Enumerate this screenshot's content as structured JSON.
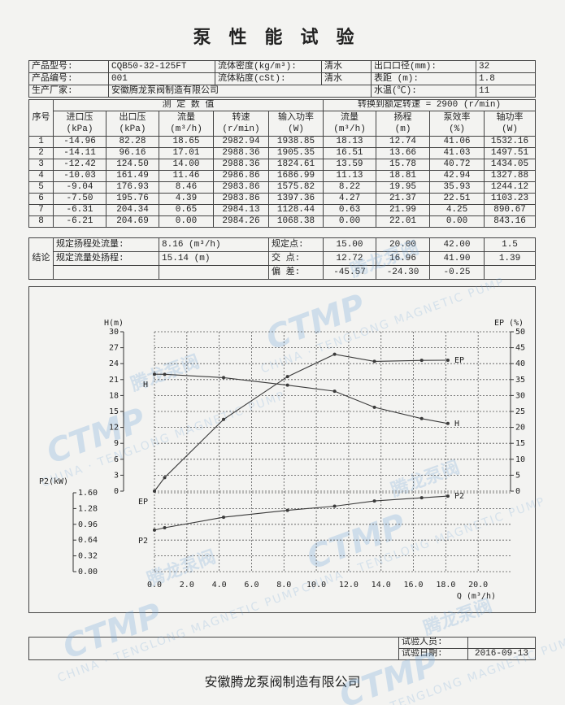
{
  "header": {
    "title": "泵性能试验"
  },
  "info": {
    "rows": [
      [
        "产品型号:",
        "CQB50-32-125FT",
        "流体密度(kg/m³):",
        "清水",
        "出口口径(mm):",
        "32"
      ],
      [
        "产品编号:",
        "001",
        "流体粘度(cSt):",
        "清水",
        "表距 (m):",
        "1.8"
      ],
      [
        "生产厂家:",
        "安徽腾龙泵阀制造有限公司",
        "水温(℃):",
        "11"
      ]
    ]
  },
  "table": {
    "group_headers": [
      "序号",
      "测 定 数 值",
      "转换到额定转速 = 2900 (r/min)"
    ],
    "columns": [
      [
        "进口压",
        "(kPa)"
      ],
      [
        "出口压",
        "(kPa)"
      ],
      [
        "流量",
        "(m³/h)"
      ],
      [
        "转速",
        "(r/min)"
      ],
      [
        "输入功率",
        "(W)"
      ],
      [
        "流量",
        "(m³/h)"
      ],
      [
        "扬程",
        "(m)"
      ],
      [
        "泵效率",
        "(%)"
      ],
      [
        "轴功率",
        "(W)"
      ]
    ],
    "rows": [
      [
        "1",
        "-14.96",
        "82.28",
        "18.65",
        "2982.94",
        "1938.85",
        "18.13",
        "12.74",
        "41.06",
        "1532.16"
      ],
      [
        "2",
        "-14.11",
        "96.16",
        "17.01",
        "2988.36",
        "1905.35",
        "16.51",
        "13.66",
        "41.03",
        "1497.51"
      ],
      [
        "3",
        "-12.42",
        "124.50",
        "14.00",
        "2988.36",
        "1824.61",
        "13.59",
        "15.78",
        "40.72",
        "1434.05"
      ],
      [
        "4",
        "-10.03",
        "161.49",
        "11.46",
        "2986.86",
        "1686.99",
        "11.13",
        "18.81",
        "42.94",
        "1327.88"
      ],
      [
        "5",
        "-9.04",
        "176.93",
        "8.46",
        "2983.86",
        "1575.82",
        "8.22",
        "19.95",
        "35.93",
        "1244.12"
      ],
      [
        "6",
        "-7.50",
        "195.76",
        "4.39",
        "2983.86",
        "1397.36",
        "4.27",
        "21.37",
        "22.51",
        "1103.23"
      ],
      [
        "7",
        "-6.31",
        "204.34",
        "0.65",
        "2984.13",
        "1128.44",
        "0.63",
        "21.99",
        "4.25",
        "890.67"
      ],
      [
        "8",
        "-6.21",
        "204.69",
        "0.00",
        "2984.26",
        "1068.38",
        "0.00",
        "22.01",
        "0.00",
        "843.16"
      ]
    ]
  },
  "conclusion": {
    "label": "结论",
    "rows": [
      [
        "规定扬程处流量:",
        "8.16 (m³/h)",
        "规定点:",
        "15.00",
        "20.00",
        "42.00",
        "1.5"
      ],
      [
        "规定流量处扬程:",
        "15.14 (m)",
        "交 点:",
        "12.72",
        "16.96",
        "41.90",
        "1.39"
      ],
      [
        "偏 差:",
        "-45.57",
        "-24.30",
        "-0.25"
      ]
    ]
  },
  "chart_data": {
    "type": "line",
    "xlabel": "Q (m³/h)",
    "xlim": [
      0,
      22
    ],
    "xticks": [
      {
        "value": 0,
        "label": "0.0"
      },
      {
        "value": 2,
        "label": "2.0"
      },
      {
        "value": 4,
        "label": "4.0"
      },
      {
        "value": 6,
        "label": "6.0"
      },
      {
        "value": 8,
        "label": "8.0"
      },
      {
        "value": 10,
        "label": "10.0"
      },
      {
        "value": 12,
        "label": "12.0"
      },
      {
        "value": 14,
        "label": "14.0"
      },
      {
        "value": 16,
        "label": "16.0"
      },
      {
        "value": 18,
        "label": "18.0"
      },
      {
        "value": 20,
        "label": "20.0"
      }
    ],
    "ylabel": "H(m)",
    "ylim": [
      0,
      30
    ],
    "yticks": [
      0,
      3,
      6,
      9,
      12,
      15,
      18,
      21,
      24,
      27,
      30
    ],
    "y2label": "EP (%)",
    "y2lim": [
      0,
      50
    ],
    "y2ticks": [
      0,
      5,
      10,
      15,
      20,
      25,
      30,
      35,
      40,
      45,
      50
    ],
    "y3label": "P2(kW)",
    "y3lim": [
      0,
      1.6
    ],
    "y3ticks": [
      {
        "value": 0,
        "label": "0.00"
      },
      0.32,
      0.64,
      0.96,
      1.28,
      {
        "value": 1.6,
        "label": "1.60"
      }
    ],
    "grid": true,
    "series": [
      {
        "name": "H",
        "color": "#3a3a3a",
        "x": [
          0,
          0.63,
          4.27,
          8.22,
          11.13,
          13.59,
          16.51,
          18.13
        ],
        "values": [
          22.01,
          21.99,
          21.37,
          19.95,
          18.81,
          15.78,
          13.66,
          12.74
        ]
      },
      {
        "name": "EP",
        "color": "#3a3a3a",
        "axis": "y2",
        "x": [
          0,
          0.63,
          4.27,
          8.22,
          11.13,
          13.59,
          16.51,
          18.13
        ],
        "values": [
          0,
          4.25,
          22.51,
          35.93,
          42.94,
          40.72,
          41.03,
          41.06
        ]
      },
      {
        "name": "P2",
        "color": "#3a3a3a",
        "axis": "y3",
        "x": [
          0,
          0.63,
          4.27,
          8.22,
          11.13,
          13.59,
          16.51,
          18.13
        ],
        "values": [
          0.843,
          0.891,
          1.103,
          1.244,
          1.328,
          1.434,
          1.498,
          1.532
        ]
      }
    ]
  },
  "footer": {
    "tester_label": "试验人员:",
    "date_label": "试验日期:",
    "date": "2016-09-13",
    "company": "安徽腾龙泵阀制造有限公司"
  },
  "watermark": {
    "logo": "CTMP",
    "cn": "腾龙泵阀",
    "en": "CHINA · TENGLONG MAGNETIC PUMP"
  }
}
